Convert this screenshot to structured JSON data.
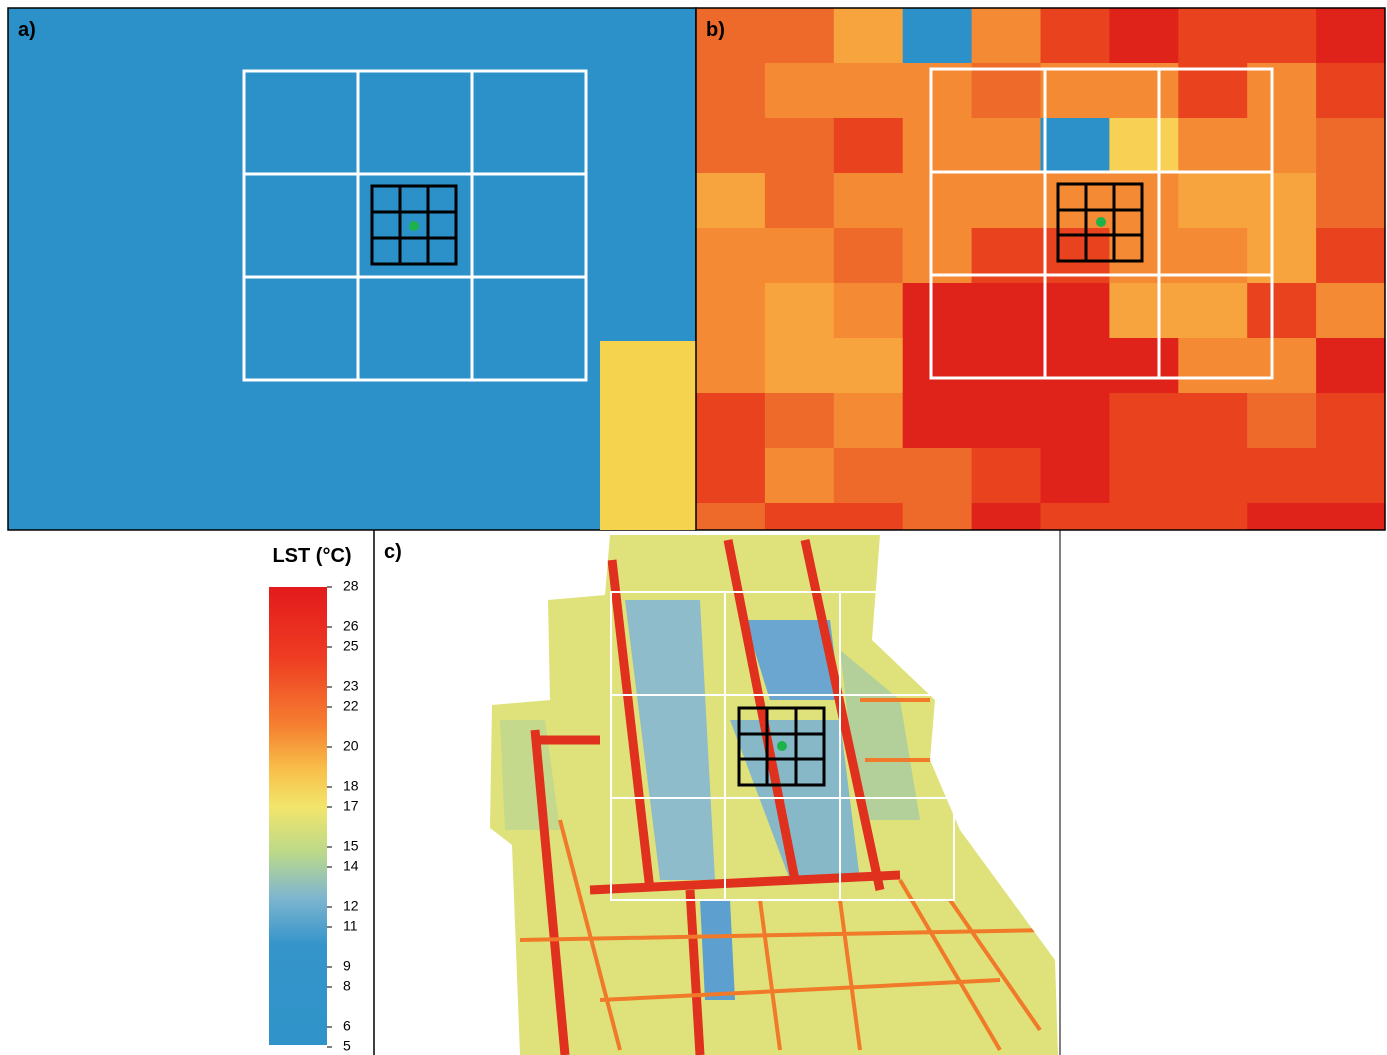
{
  "panels": [
    {
      "label": "a)"
    },
    {
      "label": "b)"
    },
    {
      "label": "c)"
    }
  ],
  "colorbar": {
    "title": "LST (°C)",
    "lim": [
      5,
      28
    ],
    "ticks": [
      28,
      26,
      25,
      23,
      22,
      20,
      18,
      17,
      15,
      14,
      12,
      11,
      9,
      8,
      6,
      5
    ]
  }
}
